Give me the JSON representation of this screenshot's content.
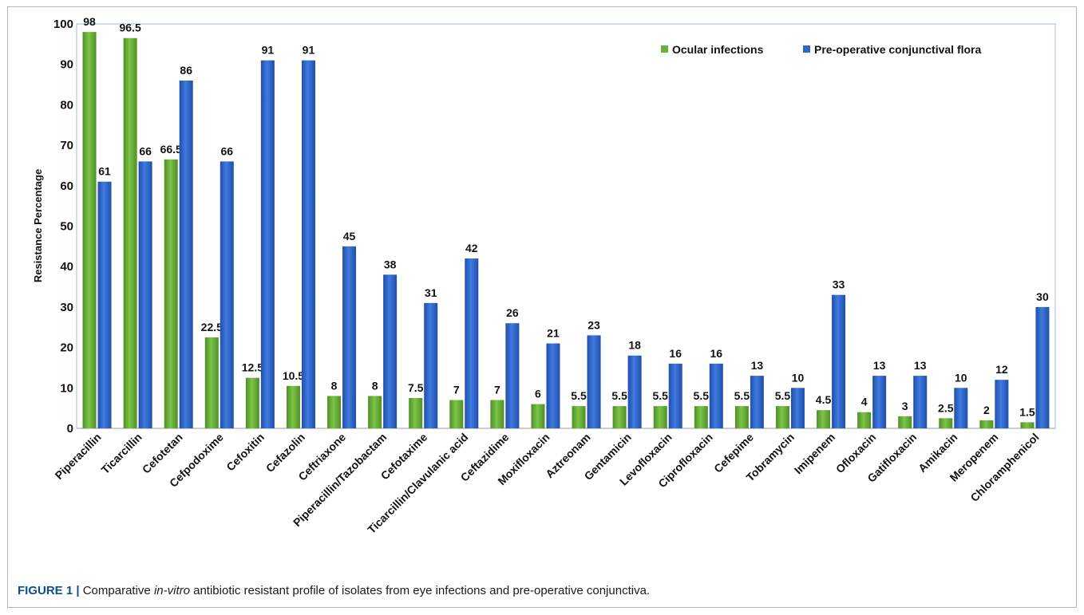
{
  "chart_data": {
    "type": "bar",
    "title": "",
    "xlabel": "",
    "ylabel": "Resistance Percentage",
    "ylim": [
      0,
      100
    ],
    "yticks": [
      0,
      10,
      20,
      30,
      40,
      50,
      60,
      70,
      80,
      90,
      100
    ],
    "grid": false,
    "legend_position": "top-right",
    "categories": [
      "Piperacillin",
      "Ticarcillin",
      "Cefotetan",
      "Cefpodoxime",
      "Cefoxitin",
      "Cefazolin",
      "Ceftriaxone",
      "Piperacillin/Tazobactam",
      "Cefotaxime",
      "Ticarcillin/Clavulanic acid",
      "Ceftazidime",
      "Moxifloxacin",
      "Aztreonam",
      "Gentamicin",
      "Levofloxacin",
      "Ciprofloxacin",
      "Cefepime",
      "Tobramycin",
      "Imipenem",
      "Ofloxacin",
      "Gatifloxacin",
      "Amikacin",
      "Meropenem",
      "Chloramphenicol"
    ],
    "series": [
      {
        "name": "Ocular infections",
        "color": "#6ab23a",
        "values": [
          98,
          96.5,
          66.5,
          22.5,
          12.5,
          10.5,
          8,
          8,
          7.5,
          7,
          7,
          6,
          5.5,
          5.5,
          5.5,
          5.5,
          5.5,
          5.5,
          4.5,
          4,
          3,
          2.5,
          2,
          1.5
        ],
        "labels": [
          "98",
          "96.5",
          "66.5",
          "22.5",
          "12.5",
          "10.5",
          "8",
          "8",
          "7.5",
          "7",
          "7",
          "6",
          "5.5",
          "5.5",
          "5.5",
          "5.5",
          "5.5",
          "5.5",
          "4.5",
          "4",
          "3",
          "2.5",
          "2",
          "1.5"
        ]
      },
      {
        "name": "Pre-operative conjunctival flora",
        "color": "#2f66cc",
        "values": [
          61,
          66,
          86,
          66,
          91,
          91,
          45,
          38,
          31,
          42,
          26,
          21,
          23,
          18,
          16,
          16,
          13,
          10,
          33,
          13,
          13,
          10,
          12,
          30
        ],
        "labels": [
          "61",
          "66",
          "86",
          "66",
          "91",
          "91",
          "45",
          "38",
          "31",
          "42",
          "26",
          "21",
          "23",
          "18",
          "16",
          "16",
          "13",
          "10",
          "33",
          "13",
          "13",
          "10",
          "12",
          "30"
        ]
      }
    ]
  },
  "caption": {
    "lead": "FIGURE 1 |",
    "text_before": "Comparative",
    "italic": "in-vitro",
    "text_after": "antibiotic resistant profile of isolates from eye infections and pre-operative conjunctiva."
  }
}
